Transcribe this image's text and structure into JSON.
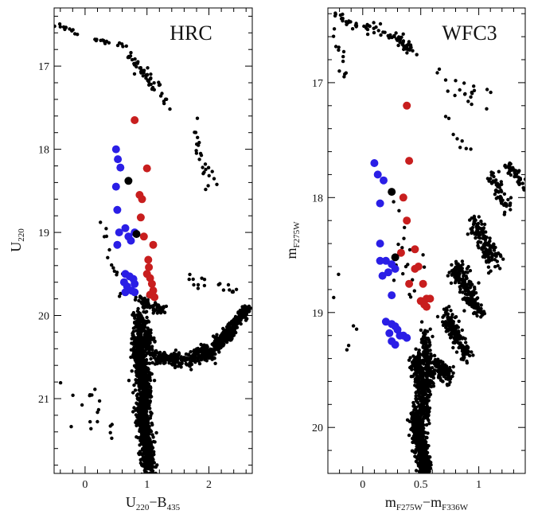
{
  "chart_data": [
    {
      "type": "scatter",
      "title": "HRC",
      "xlabel": {
        "main": "U",
        "sub1": "220",
        "sep": "−B",
        "sub2": "435"
      },
      "ylabel": {
        "main": "U",
        "sub": "220"
      },
      "xlim": [
        -0.5,
        2.7
      ],
      "ylim": [
        21.9,
        16.3
      ],
      "x_ticks": [
        0,
        1,
        2
      ],
      "x_tick_labels": [
        "0",
        "1",
        "2"
      ],
      "y_ticks": [
        17,
        18,
        19,
        20,
        21
      ],
      "y_tick_labels": [
        "17",
        "18",
        "19",
        "20",
        "21"
      ],
      "x_minor": 0.2,
      "y_minor": 0.2,
      "grid": false,
      "legend": "none",
      "colors": {
        "general": "#000000",
        "blue": "#2a1ee6",
        "red": "#c81e1e",
        "black_marked": "#000000"
      },
      "series": [
        {
          "group": "blue",
          "points": [
            [
              0.5,
              18.0
            ],
            [
              0.53,
              18.12
            ],
            [
              0.57,
              18.22
            ],
            [
              0.5,
              18.45
            ],
            [
              0.52,
              18.73
            ],
            [
              0.55,
              19.0
            ],
            [
              0.52,
              19.15
            ],
            [
              0.65,
              18.95
            ],
            [
              0.7,
              19.05
            ],
            [
              0.74,
              19.1
            ],
            [
              0.8,
              19.0
            ],
            [
              0.65,
              19.5
            ],
            [
              0.72,
              19.53
            ],
            [
              0.78,
              19.56
            ],
            [
              0.63,
              19.6
            ],
            [
              0.68,
              19.65
            ],
            [
              0.8,
              19.62
            ],
            [
              0.65,
              19.72
            ],
            [
              0.75,
              19.7
            ],
            [
              0.8,
              19.72
            ]
          ]
        },
        {
          "group": "red",
          "points": [
            [
              0.8,
              17.65
            ],
            [
              1.0,
              18.23
            ],
            [
              0.88,
              18.55
            ],
            [
              0.92,
              18.6
            ],
            [
              0.9,
              18.82
            ],
            [
              0.95,
              19.05
            ],
            [
              1.1,
              19.15
            ],
            [
              1.02,
              19.33
            ],
            [
              1.03,
              19.42
            ],
            [
              1.0,
              19.5
            ],
            [
              1.05,
              19.55
            ],
            [
              1.08,
              19.62
            ],
            [
              1.1,
              19.7
            ],
            [
              1.05,
              19.75
            ],
            [
              1.12,
              19.78
            ]
          ]
        },
        {
          "group": "black_marked",
          "points": [
            [
              0.7,
              18.38
            ],
            [
              0.83,
              19.02
            ]
          ]
        }
      ]
    },
    {
      "type": "scatter",
      "title": "WFC3",
      "xlabel": {
        "main": "m",
        "sub1": "F275W",
        "sep": "−m",
        "sub2": "F336W"
      },
      "ylabel": {
        "main": "m",
        "sub": "F275W"
      },
      "xlim": [
        -0.3,
        1.4
      ],
      "ylim": [
        20.4,
        16.35
      ],
      "x_ticks": [
        0,
        0.5,
        1
      ],
      "x_tick_labels": [
        "0",
        "0.5",
        "1"
      ],
      "y_ticks": [
        17,
        18,
        19,
        20
      ],
      "y_tick_labels": [
        "17",
        "18",
        "19",
        "20"
      ],
      "x_minor": 0.1,
      "y_minor": 0.2,
      "grid": false,
      "legend": "none",
      "colors": {
        "general": "#000000",
        "blue": "#2a1ee6",
        "red": "#c81e1e",
        "black_marked": "#000000"
      },
      "series": [
        {
          "group": "blue",
          "points": [
            [
              0.1,
              17.7
            ],
            [
              0.13,
              17.8
            ],
            [
              0.18,
              17.85
            ],
            [
              0.15,
              18.05
            ],
            [
              0.15,
              18.4
            ],
            [
              0.15,
              18.55
            ],
            [
              0.2,
              18.55
            ],
            [
              0.25,
              18.58
            ],
            [
              0.22,
              18.65
            ],
            [
              0.17,
              18.68
            ],
            [
              0.28,
              18.62
            ],
            [
              0.25,
              18.85
            ],
            [
              0.2,
              19.08
            ],
            [
              0.25,
              19.1
            ],
            [
              0.28,
              19.12
            ],
            [
              0.3,
              19.15
            ],
            [
              0.23,
              19.18
            ],
            [
              0.35,
              19.2
            ],
            [
              0.38,
              19.22
            ],
            [
              0.25,
              19.25
            ],
            [
              0.28,
              19.28
            ],
            [
              0.32,
              19.2
            ]
          ]
        },
        {
          "group": "red",
          "points": [
            [
              0.38,
              17.2
            ],
            [
              0.4,
              17.68
            ],
            [
              0.35,
              18.0
            ],
            [
              0.38,
              18.2
            ],
            [
              0.33,
              18.48
            ],
            [
              0.45,
              18.45
            ],
            [
              0.45,
              18.62
            ],
            [
              0.48,
              18.6
            ],
            [
              0.4,
              18.75
            ],
            [
              0.52,
              18.75
            ],
            [
              0.5,
              18.9
            ],
            [
              0.55,
              18.88
            ],
            [
              0.58,
              18.88
            ],
            [
              0.53,
              18.93
            ],
            [
              0.55,
              18.95
            ]
          ]
        },
        {
          "group": "black_marked",
          "points": [
            [
              0.25,
              17.95
            ],
            [
              0.28,
              18.52
            ]
          ]
        }
      ]
    }
  ]
}
